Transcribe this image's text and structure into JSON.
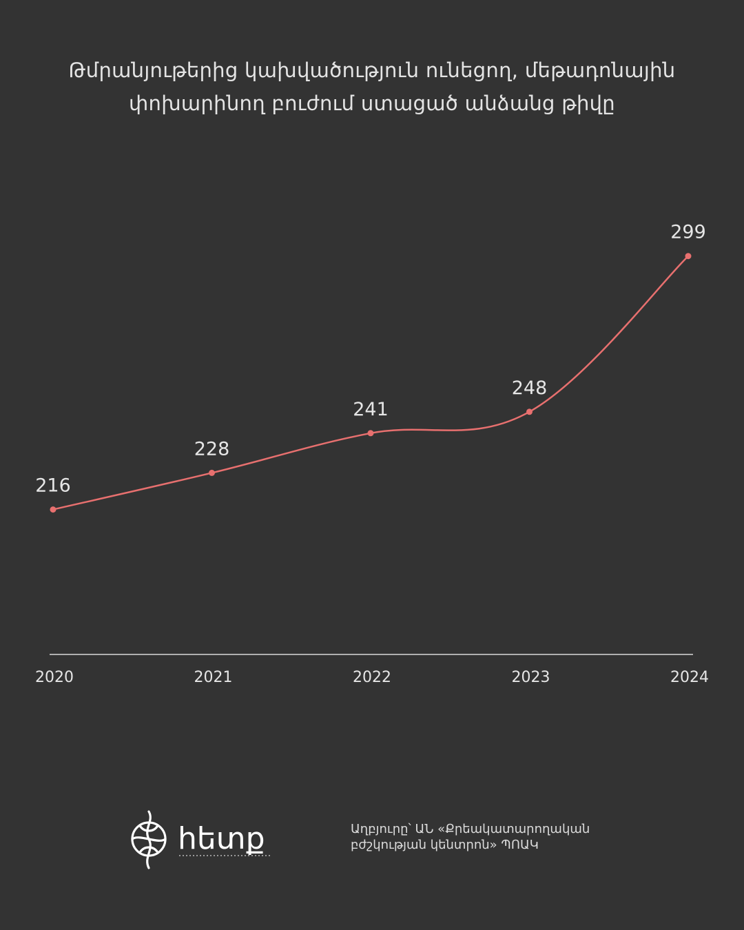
{
  "colors": {
    "background": "#333333",
    "line": "#e8706f",
    "text": "#e6e6e6",
    "axis": "#d9d9d9"
  },
  "title_lines": [
    "Թմրանյութերից կախվածություն ունեցող, մեթադոնային",
    "փոխարինող բուժում ստացած անձանց թիվը"
  ],
  "chart_data": {
    "type": "line",
    "title": "Թմրանյութերից կախվածություն ունեցող, մեթադոնային փոխարինող բուժում ստացած անձանց թիվը",
    "categories": [
      "2020",
      "2021",
      "2022",
      "2023",
      "2024"
    ],
    "series": [
      {
        "values": [
          216,
          228,
          241,
          248,
          299
        ]
      }
    ],
    "data_labels": [
      "216",
      "228",
      "241",
      "248",
      "299"
    ],
    "xlabel": "",
    "ylabel": "",
    "ylim": [
      155,
      340
    ],
    "grid": false,
    "legend": "none",
    "smooth": true
  },
  "logo": {
    "icon": "heatmap-spiral-emblem-icon",
    "wordmark": "հետք"
  },
  "source_lines": [
    "Աղբյուրը՝ ԱՆ «Քրեակատարողական",
    "բժշկության կենտրոն» ՊՈԱԿ"
  ]
}
